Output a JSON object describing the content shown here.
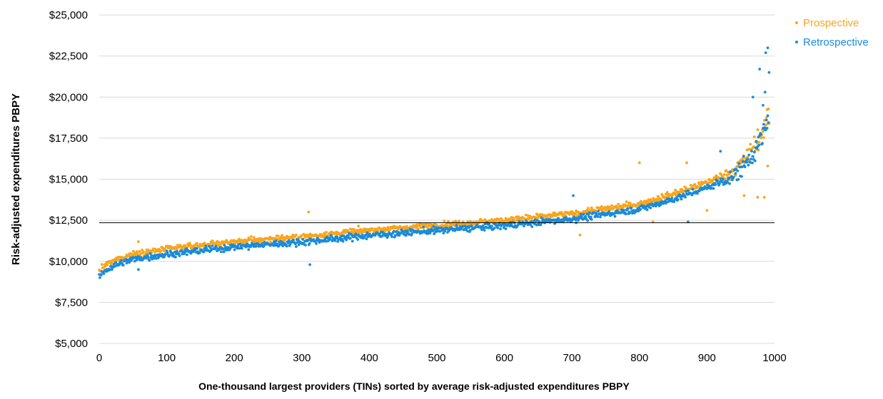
{
  "chart_data": {
    "type": "scatter",
    "title": "",
    "xlabel": "One-thousand largest providers (TINs) sorted by average risk-adjusted expenditures PBPY",
    "ylabel": "Risk-adjusted expenditures PBPY",
    "xlim": [
      0,
      1000
    ],
    "ylim": [
      5000,
      25000
    ],
    "x_ticks": [
      0,
      100,
      200,
      300,
      400,
      500,
      600,
      700,
      800,
      900,
      1000
    ],
    "x_tick_labels": [
      "0",
      "100",
      "200",
      "300",
      "400",
      "500",
      "600",
      "700",
      "800",
      "900",
      "1000"
    ],
    "y_ticks": [
      5000,
      7500,
      10000,
      12500,
      15000,
      17500,
      20000,
      22500,
      25000
    ],
    "y_tick_labels": [
      "$5,000",
      "$7,500",
      "$10,000",
      "$12,500",
      "$15,000",
      "$17,500",
      "$20,000",
      "$22,500",
      "$25,000"
    ],
    "grid": true,
    "legend_position": "top-right",
    "reference_line": {
      "y": 12350
    },
    "trend_profile": {
      "x": [
        0,
        10,
        25,
        50,
        100,
        200,
        300,
        400,
        500,
        600,
        700,
        800,
        850,
        900,
        940,
        960,
        980,
        990
      ],
      "y": [
        9200,
        9600,
        9900,
        10250,
        10550,
        11000,
        11300,
        11700,
        12000,
        12300,
        12700,
        13300,
        13900,
        14600,
        15300,
        16200,
        17500,
        18500
      ]
    },
    "series": [
      {
        "name": "Prospective",
        "color": "#F9A51B",
        "point_count": 1000,
        "offset": 200,
        "noise": 150,
        "notable_points": [
          {
            "x": 310,
            "y": 13000
          },
          {
            "x": 58,
            "y": 11200
          },
          {
            "x": 800,
            "y": 16000
          },
          {
            "x": 870,
            "y": 16000
          },
          {
            "x": 955,
            "y": 14000
          },
          {
            "x": 975,
            "y": 13900
          },
          {
            "x": 985,
            "y": 13900
          },
          {
            "x": 990,
            "y": 15800
          },
          {
            "x": 992,
            "y": 18400
          },
          {
            "x": 712,
            "y": 11600
          },
          {
            "x": 820,
            "y": 12400
          },
          {
            "x": 900,
            "y": 13100
          }
        ]
      },
      {
        "name": "Retrospective",
        "color": "#1A8BD9",
        "point_count": 1000,
        "offset": -120,
        "noise": 170,
        "notable_points": [
          {
            "x": 312,
            "y": 9800
          },
          {
            "x": 58,
            "y": 9500
          },
          {
            "x": 920,
            "y": 16700
          },
          {
            "x": 968,
            "y": 20000
          },
          {
            "x": 978,
            "y": 21700
          },
          {
            "x": 983,
            "y": 19500
          },
          {
            "x": 986,
            "y": 20300
          },
          {
            "x": 987,
            "y": 22700
          },
          {
            "x": 990,
            "y": 23000
          },
          {
            "x": 992,
            "y": 21500
          },
          {
            "x": 872,
            "y": 12400
          },
          {
            "x": 702,
            "y": 14000
          }
        ]
      }
    ]
  }
}
